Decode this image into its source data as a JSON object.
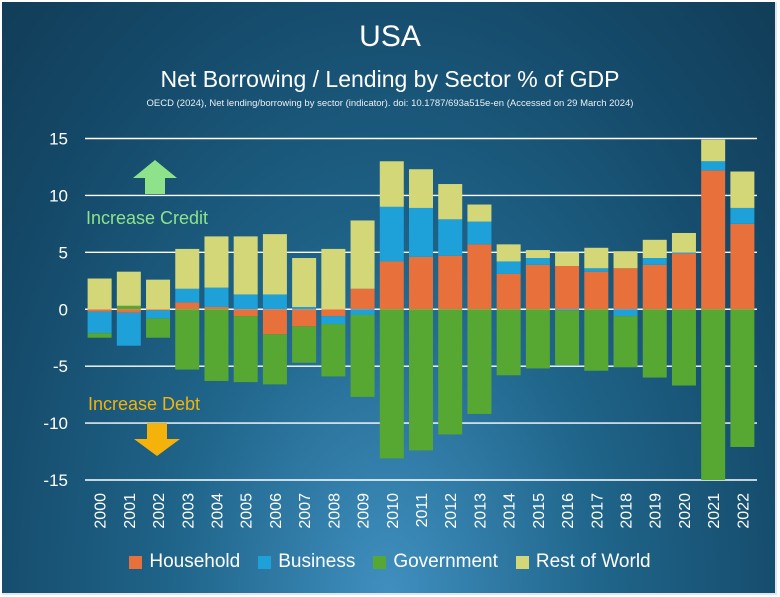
{
  "chart_data": {
    "type": "bar",
    "stacked": true,
    "title": "USA",
    "subtitle": "Net Borrowing / Lending by Sector % of GDP",
    "source": "OECD (2024), Net lending/borrowing by sector (indicator). doi: 10.1787/693a515e-en (Accessed on 29 March 2024)",
    "categories": [
      "2000",
      "2001",
      "2002",
      "2003",
      "2004",
      "2005",
      "2006",
      "2007",
      "2008",
      "2009",
      "2010",
      "2011",
      "2012",
      "2013",
      "2014",
      "2015",
      "2016",
      "2017",
      "2018",
      "2019",
      "2020",
      "2021",
      "2022"
    ],
    "ylim": [
      -15,
      15
    ],
    "yticks": [
      15,
      10,
      5,
      0,
      -5,
      -10,
      -15
    ],
    "ytick_labels": [
      "15",
      "10",
      "5",
      "0",
      "-5",
      "-10",
      "-15"
    ],
    "grid": true,
    "legend_position": "bottom",
    "series": [
      {
        "name": "Household",
        "color": "#e8703a",
        "values": [
          -0.2,
          -0.3,
          -0.1,
          0.6,
          0.2,
          -0.6,
          -2.2,
          -1.5,
          -0.6,
          1.8,
          4.2,
          4.6,
          4.7,
          5.7,
          3.1,
          3.9,
          3.8,
          3.3,
          3.6,
          3.9,
          4.9,
          12.2,
          7.5
        ]
      },
      {
        "name": "Business",
        "color": "#1ea1d9",
        "values": [
          -1.9,
          -2.9,
          -0.7,
          1.2,
          1.7,
          1.3,
          1.3,
          0.2,
          -0.7,
          -0.5,
          4.8,
          4.3,
          3.2,
          2.0,
          1.1,
          0.6,
          -0.1,
          0.3,
          -0.6,
          0.6,
          0.1,
          0.8,
          1.4
        ]
      },
      {
        "name": "Government",
        "color": "#56a832",
        "values": [
          -0.4,
          0.3,
          -1.7,
          -5.3,
          -6.3,
          -5.8,
          -4.4,
          -3.2,
          -4.6,
          -7.2,
          -13.1,
          -12.4,
          -11.0,
          -9.2,
          -5.8,
          -5.2,
          -4.8,
          -5.4,
          -4.5,
          -6.0,
          -6.7,
          -15.0,
          -12.1
        ]
      },
      {
        "name": "Rest of World",
        "color": "#d4d777",
        "values": [
          2.7,
          3.0,
          2.6,
          3.5,
          4.5,
          5.1,
          5.3,
          4.3,
          5.3,
          6.0,
          4.0,
          3.4,
          3.1,
          1.5,
          1.5,
          0.7,
          1.2,
          1.8,
          1.5,
          1.6,
          1.7,
          1.9,
          3.2
        ]
      }
    ],
    "annotations": [
      {
        "text": "Increase Credit",
        "color": "#8ee38a",
        "arrow": "up"
      },
      {
        "text": "Increase Debt",
        "color": "#f5b20a",
        "arrow": "down"
      }
    ]
  }
}
